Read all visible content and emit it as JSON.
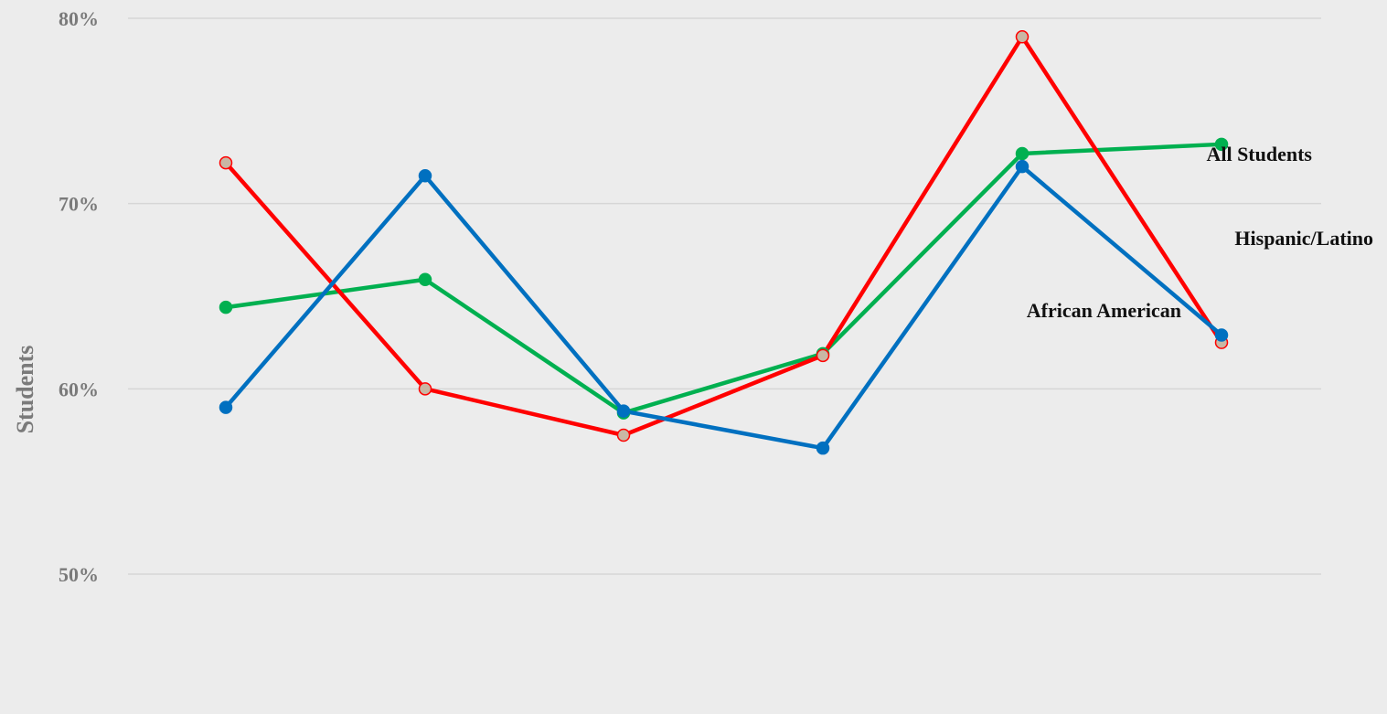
{
  "chart_data": {
    "type": "line",
    "title": "",
    "xlabel": "",
    "ylabel": "Students",
    "ylim": [
      0.45,
      0.8
    ],
    "yticks": [
      {
        "value": 0.5,
        "label": "50%"
      },
      {
        "value": 0.6,
        "label": "60%"
      },
      {
        "value": 0.7,
        "label": "70%"
      },
      {
        "value": 0.8,
        "label": "80%"
      }
    ],
    "grid": true,
    "x": [
      1,
      2,
      3,
      4,
      5,
      6
    ],
    "series": [
      {
        "name": "All Students",
        "color": "#00b050",
        "marker_fill": "#00b050",
        "marker_stroke": "#00b050",
        "values": [
          0.644,
          0.659,
          0.587,
          0.619,
          0.727,
          0.732
        ]
      },
      {
        "name": "Hispanic/Latino",
        "color": "#ff0000",
        "marker_fill": "#c9b7a4",
        "marker_stroke": "#ff0000",
        "values": [
          0.722,
          0.6,
          0.575,
          0.618,
          0.79,
          0.625
        ]
      },
      {
        "name": "African American",
        "color": "#0070c0",
        "marker_fill": "#0070c0",
        "marker_stroke": "#0070c0",
        "values": [
          0.59,
          0.715,
          0.588,
          0.568,
          0.72,
          0.629
        ]
      }
    ]
  }
}
